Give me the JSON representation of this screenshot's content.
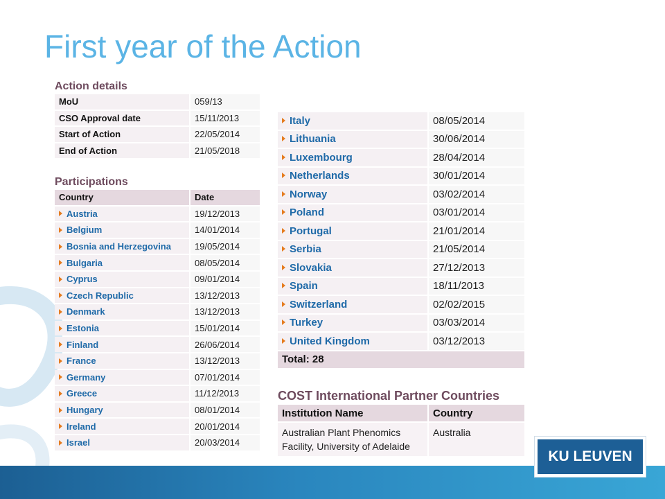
{
  "slide": {
    "title": "First year of the Action"
  },
  "action_details": {
    "heading": "Action details",
    "rows": [
      {
        "label": "MoU",
        "value": "059/13"
      },
      {
        "label": "CSO Approval date",
        "value": "15/11/2013"
      },
      {
        "label": "Start of Action",
        "value": "22/05/2014"
      },
      {
        "label": "End of Action",
        "value": "21/05/2018"
      }
    ]
  },
  "participations": {
    "heading": "Participations",
    "headers": [
      "Country",
      "Date"
    ],
    "rows": [
      {
        "country": "Austria",
        "date": "19/12/2013"
      },
      {
        "country": "Belgium",
        "date": "14/01/2014"
      },
      {
        "country": "Bosnia and Herzegovina",
        "date": "19/05/2014"
      },
      {
        "country": "Bulgaria",
        "date": "08/05/2014"
      },
      {
        "country": "Cyprus",
        "date": "09/01/2014"
      },
      {
        "country": "Czech Republic",
        "date": "13/12/2013"
      },
      {
        "country": "Denmark",
        "date": "13/12/2013"
      },
      {
        "country": "Estonia",
        "date": "15/01/2014"
      },
      {
        "country": "Finland",
        "date": "26/06/2014"
      },
      {
        "country": "France",
        "date": "13/12/2013"
      },
      {
        "country": "Germany",
        "date": "07/01/2014"
      },
      {
        "country": "Greece",
        "date": "11/12/2013"
      },
      {
        "country": "Hungary",
        "date": "08/01/2014"
      },
      {
        "country": "Ireland",
        "date": "20/01/2014"
      },
      {
        "country": "Israel",
        "date": "20/03/2014"
      }
    ],
    "continued_rows": [
      {
        "country": "Italy",
        "date": "08/05/2014"
      },
      {
        "country": "Lithuania",
        "date": "30/06/2014"
      },
      {
        "country": "Luxembourg",
        "date": "28/04/2014"
      },
      {
        "country": "Netherlands",
        "date": "30/01/2014"
      },
      {
        "country": "Norway",
        "date": "03/02/2014"
      },
      {
        "country": "Poland",
        "date": "03/01/2014"
      },
      {
        "country": "Portugal",
        "date": "21/01/2014"
      },
      {
        "country": "Serbia",
        "date": "21/05/2014"
      },
      {
        "country": "Slovakia",
        "date": "27/12/2013"
      },
      {
        "country": "Spain",
        "date": "18/11/2013"
      },
      {
        "country": "Switzerland",
        "date": "02/02/2015"
      },
      {
        "country": "Turkey",
        "date": "03/03/2014"
      },
      {
        "country": "United Kingdom",
        "date": "03/12/2013"
      }
    ],
    "total_label": "Total: 28"
  },
  "partner_countries": {
    "heading": "COST International Partner Countries",
    "headers": [
      "Institution Name",
      "Country"
    ],
    "rows": [
      {
        "institution_line1": "Australian Plant Phenomics",
        "institution_line2": "Facility, University of Adelaide",
        "country": "Australia"
      }
    ]
  },
  "logo": {
    "text": "KU LEUVEN"
  },
  "colors": {
    "title": "#5bb4e5",
    "heading": "#6e4b5e",
    "link": "#1f6aa8",
    "arrow": "#e57c1f",
    "header_bg": "#e5d8df",
    "bar": "#1c5f93",
    "logo_bg": "#1d5f96"
  }
}
